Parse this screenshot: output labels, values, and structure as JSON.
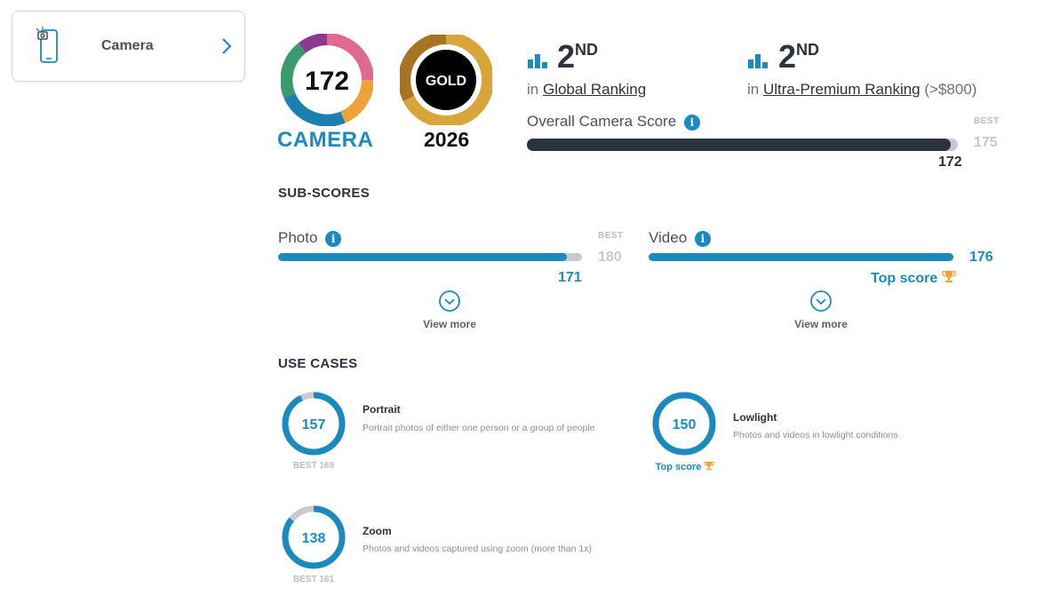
{
  "tab": {
    "label": "Camera"
  },
  "badges": {
    "camera_score": "172",
    "camera_label": "CAMERA",
    "gold_label": "GOLD",
    "year": "2026"
  },
  "rankings": [
    {
      "rank": "2",
      "suffix": "ND",
      "prefix": "in",
      "name": "Global Ranking",
      "extra": ""
    },
    {
      "rank": "2",
      "suffix": "ND",
      "prefix": "in",
      "name": "Ultra-Premium Ranking",
      "extra": "(>$800)"
    }
  ],
  "overall": {
    "label": "Overall Camera Score",
    "info": "i",
    "best_label": "BEST",
    "best": "175",
    "value": "172",
    "fraction": 0.983
  },
  "subscores": {
    "title": "SUB-SCORES",
    "photo": {
      "label": "Photo",
      "best_label": "BEST",
      "best": "180",
      "value": "171",
      "fraction": 0.95
    },
    "video": {
      "label": "Video",
      "value": "176",
      "top_label": "Top score",
      "fraction": 1.0
    },
    "view_more": "View more"
  },
  "use_cases": {
    "title": "USE CASES",
    "portrait": {
      "score": "157",
      "fraction": 0.929,
      "title": "Portrait",
      "desc": "Portrait photos of either one person or a group of people",
      "best": "BEST 169"
    },
    "lowlight": {
      "score": "150",
      "fraction": 1.0,
      "title": "Lowlight",
      "desc": "Photos and videos in lowlight conditions",
      "top_label": "Top score"
    },
    "zoom": {
      "score": "138",
      "fraction": 0.857,
      "title": "Zoom",
      "desc": "Photos and videos captured using zoom (more than 1x)",
      "best": "BEST 161"
    }
  },
  "colors": {
    "accent": "#1b8bbf",
    "dark": "#2c3240",
    "track": "#c7cad3",
    "gold": "#d9a53a"
  }
}
